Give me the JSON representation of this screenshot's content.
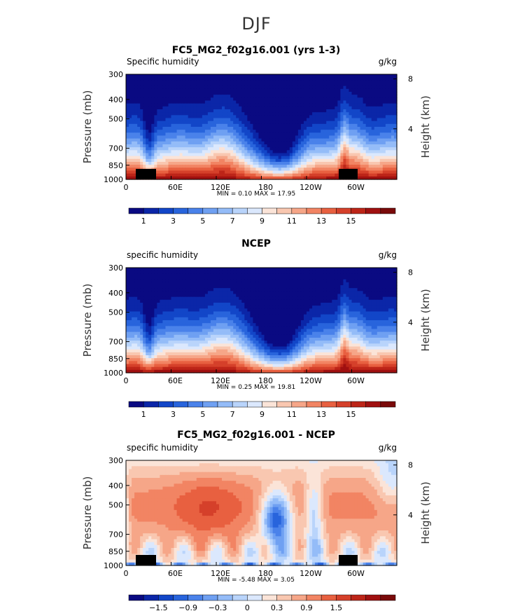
{
  "suptitle": "DJF",
  "chart_data": [
    {
      "type": "heatmap",
      "title": "FC5_MG2_f02g16.001 (yrs 1-3)",
      "subtitle_left": "Specific humidity",
      "subtitle_right": "g/kg",
      "ylabel": "Pressure (mb)",
      "ylabel_right": "Height (km)",
      "y_ticks": [
        "300",
        "400",
        "500",
        "700",
        "850",
        "1000"
      ],
      "y_ticks_right": [
        "8",
        "4"
      ],
      "x_ticks": [
        "0",
        "60E",
        "120E",
        "180",
        "120W",
        "60W"
      ],
      "stats": {
        "min_label": "MIN =",
        "min": "0.10",
        "max_label": "MAX =",
        "max": "17.95"
      },
      "colorbar_ticks": [
        "1",
        "3",
        "5",
        "7",
        "9",
        "11",
        "13",
        "15"
      ],
      "colorbar_levels": 18,
      "palette": "blue-white-red",
      "value_range": [
        0.1,
        17.95
      ]
    },
    {
      "type": "heatmap",
      "title": "NCEP",
      "subtitle_left": "specific humidity",
      "subtitle_right": "g/kg",
      "ylabel": "Pressure (mb)",
      "ylabel_right": "Height (km)",
      "y_ticks": [
        "300",
        "400",
        "500",
        "700",
        "850",
        "1000"
      ],
      "y_ticks_right": [
        "8",
        "4"
      ],
      "x_ticks": [
        "0",
        "60E",
        "120E",
        "180",
        "120W",
        "60W"
      ],
      "stats": {
        "min_label": "MIN =",
        "min": "0.25",
        "max_label": "MAX =",
        "max": "19.81"
      },
      "colorbar_ticks": [
        "1",
        "3",
        "5",
        "7",
        "9",
        "11",
        "13",
        "15"
      ],
      "colorbar_levels": 18,
      "palette": "blue-white-red",
      "value_range": [
        0.25,
        19.81
      ]
    },
    {
      "type": "heatmap",
      "title": "FC5_MG2_f02g16.001 - NCEP",
      "subtitle_left": "specific humidity",
      "subtitle_right": "g/kg",
      "ylabel": "Pressure (mb)",
      "ylabel_right": "Height (km)",
      "y_ticks": [
        "300",
        "400",
        "500",
        "700",
        "850",
        "1000"
      ],
      "y_ticks_right": [
        "8",
        "4"
      ],
      "x_ticks": [
        "0",
        "60E",
        "120E",
        "180",
        "120W",
        "60W"
      ],
      "stats": {
        "min_label": "MIN =",
        "min": "-5.48",
        "max_label": "MAX =",
        "max": "3.05"
      },
      "colorbar_ticks": [
        "−1.5",
        "−0.9",
        "−0.3",
        "0",
        "0.3",
        "0.9",
        "1.5"
      ],
      "colorbar_levels": 18,
      "palette": "blue-white-red",
      "value_range": [
        -5.48,
        3.05
      ]
    }
  ],
  "colors": {
    "palette": [
      "#0a0a82",
      "#0b26a8",
      "#1246c8",
      "#2864dc",
      "#4a82ea",
      "#6fa0f2",
      "#94bcf8",
      "#b9d4fb",
      "#dbe8fd",
      "#fbe4d8",
      "#f9c7b0",
      "#f6a688",
      "#f28463",
      "#e86040",
      "#d5402a",
      "#bd2518",
      "#a01010",
      "#7a0a0a"
    ],
    "land": "#000000"
  }
}
